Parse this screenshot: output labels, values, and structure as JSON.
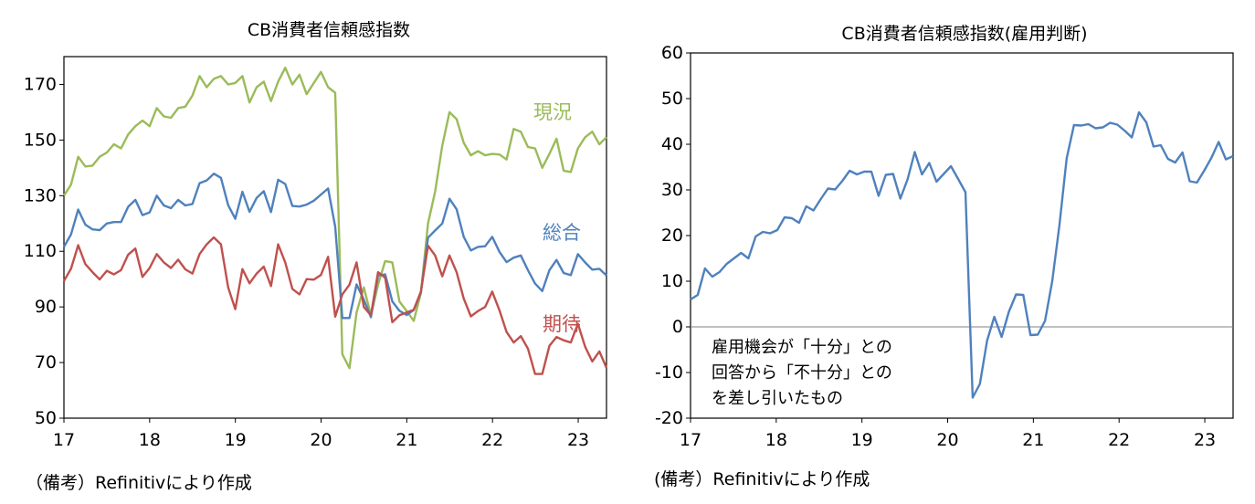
{
  "left": {
    "title": "CB消費者信頼感指数",
    "source": "（備考）Refinitivにより作成"
  },
  "right": {
    "title": "CB消費者信頼感指数(雇用判断)",
    "source": "(備考）Refinitivにより作成",
    "annotation": [
      "雇用機会が「十分」との",
      "回答から「不十分」との",
      "を差し引いたもの"
    ]
  },
  "colors": {
    "present": "#9BBB59",
    "total": "#4F81BD",
    "expect": "#C0504D",
    "employment": "#4F81BD",
    "axis": "#000000"
  },
  "chart_data": [
    {
      "type": "line",
      "title": "CB消費者信頼感指数",
      "xlabel": "",
      "ylabel": "",
      "x_ticks": [
        "17",
        "18",
        "19",
        "20",
        "21",
        "22",
        "23"
      ],
      "xlim": [
        2017,
        2023.33
      ],
      "ylim": [
        50,
        180
      ],
      "y_ticks": [
        50,
        70,
        90,
        110,
        130,
        150,
        170
      ],
      "grid": false,
      "legend": "inline labels",
      "series": [
        {
          "name": "現況",
          "color": "#9BBB59",
          "values": [
            130.0,
            134.0,
            144.0,
            140.5,
            140.8,
            144.0,
            145.5,
            148.5,
            147.0,
            152.0,
            155.0,
            157.0,
            155.0,
            161.5,
            158.5,
            158.0,
            161.5,
            162.0,
            166.0,
            173.0,
            169.0,
            172.0,
            173.0,
            170.0,
            170.5,
            173.0,
            163.5,
            169.0,
            171.0,
            164.0,
            171.0,
            176.0,
            170.0,
            173.5,
            166.5,
            170.5,
            174.5,
            169.0,
            167.0,
            73.0,
            68.0,
            88.0,
            97.0,
            87.0,
            98.0,
            106.5,
            106.0,
            92.0,
            88.5,
            85.0,
            95.0,
            120.0,
            131.5,
            148.0,
            160.0,
            157.5,
            149.0,
            144.5,
            146.0,
            144.5,
            145.0,
            144.8,
            143.0,
            154.0,
            153.0,
            147.5,
            147.0,
            140.0,
            145.0,
            150.5,
            139.0,
            138.5,
            147.0,
            151.0,
            153.0,
            148.5,
            151.0
          ]
        },
        {
          "name": "総合",
          "color": "#4F81BD",
          "values": [
            111.6,
            116.1,
            125.0,
            119.6,
            117.9,
            117.6,
            120.0,
            120.5,
            120.5,
            126.0,
            128.5,
            123.0,
            124.0,
            130.0,
            126.5,
            125.5,
            128.5,
            126.5,
            127.0,
            134.5,
            135.5,
            137.9,
            136.4,
            126.6,
            121.7,
            131.4,
            124.2,
            129.2,
            131.6,
            124.1,
            135.7,
            134.2,
            126.3,
            126.1,
            126.8,
            128.2,
            130.4,
            132.6,
            118.8,
            86.0,
            86.0,
            98.1,
            92.6,
            86.3,
            101.3,
            101.7,
            92.0,
            88.6,
            87.1,
            88.9,
            95.2,
            114.9,
            117.5,
            120.0,
            128.9,
            125.1,
            115.2,
            110.3,
            111.6,
            111.8,
            115.2,
            109.8,
            106.1,
            107.7,
            108.5,
            103.2,
            98.4,
            95.7,
            103.2,
            106.9,
            102.2,
            101.4,
            109.0,
            106.0,
            103.4,
            103.7,
            101.3
          ]
        },
        {
          "name": "期待",
          "color": "#C0504D",
          "values": [
            99.3,
            103.8,
            112.2,
            105.4,
            102.5,
            99.9,
            103.0,
            101.7,
            103.2,
            108.8,
            111.0,
            100.8,
            104.0,
            109.0,
            106.0,
            104.0,
            107.0,
            103.5,
            102.0,
            109.0,
            112.5,
            115.0,
            112.5,
            97.0,
            89.2,
            103.6,
            98.5,
            102.0,
            104.5,
            97.5,
            112.5,
            106.0,
            96.5,
            94.5,
            100.0,
            99.8,
            101.5,
            108.0,
            86.5,
            94.5,
            98.0,
            106.0,
            90.0,
            87.0,
            102.5,
            100.5,
            84.5,
            87.0,
            88.0,
            89.0,
            95.5,
            112.0,
            108.5,
            101.0,
            108.5,
            102.5,
            93.0,
            86.6,
            88.5,
            90.0,
            95.5,
            88.8,
            81.0,
            77.2,
            79.5,
            75.0,
            65.9,
            65.9,
            76.0,
            79.2,
            78.0,
            77.2,
            83.9,
            75.7,
            70.4,
            74.0,
            68.1
          ]
        }
      ]
    },
    {
      "type": "line",
      "title": "CB消費者信頼感指数(雇用判断)",
      "xlabel": "",
      "ylabel": "",
      "x_ticks": [
        "17",
        "18",
        "19",
        "20",
        "21",
        "22",
        "23"
      ],
      "xlim": [
        2017,
        2023.33
      ],
      "ylim": [
        -20,
        60
      ],
      "y_ticks": [
        -20,
        -10,
        0,
        10,
        20,
        30,
        40,
        50,
        60
      ],
      "grid": false,
      "series": [
        {
          "name": "",
          "color": "#4F81BD",
          "values": [
            6.0,
            7.0,
            12.8,
            11.0,
            12.0,
            13.8,
            15.0,
            16.2,
            15.0,
            19.8,
            20.8,
            20.5,
            21.2,
            24.0,
            23.8,
            22.8,
            26.4,
            25.5,
            28.0,
            30.3,
            30.1,
            32.0,
            34.2,
            33.4,
            34.0,
            34.0,
            28.7,
            33.3,
            33.5,
            28.1,
            32.3,
            38.3,
            33.4,
            35.9,
            31.8,
            33.5,
            35.2,
            32.4,
            29.5,
            -15.5,
            -12.5,
            -3.0,
            2.2,
            -2.2,
            3.3,
            7.1,
            7.0,
            -1.8,
            -1.7,
            1.3,
            10.0,
            22.3,
            36.9,
            44.2,
            44.1,
            44.4,
            43.5,
            43.7,
            44.7,
            44.3,
            43.0,
            41.5,
            47.0,
            44.8,
            39.5,
            39.8,
            36.8,
            36.0,
            38.2,
            31.9,
            31.6,
            34.2,
            37.0,
            40.5,
            36.7,
            37.4
          ]
        }
      ]
    }
  ]
}
